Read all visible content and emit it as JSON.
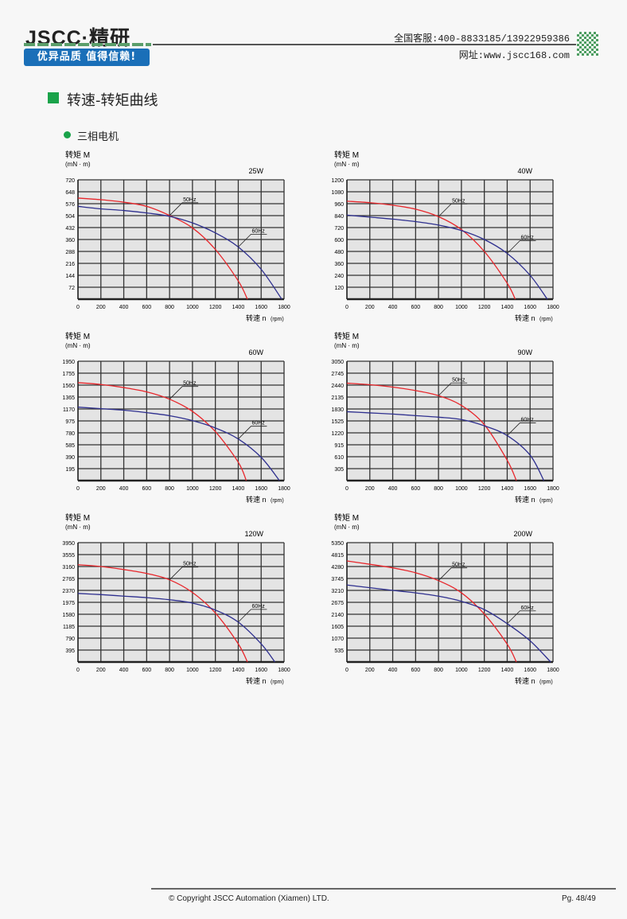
{
  "header": {
    "logo": "JSCC·精研",
    "slogan": "优异品质 值得信赖!",
    "hotline": "全国客服:400-8833185/13922959386",
    "website": "网址:www.jscc168.com"
  },
  "section_title": "转速-转矩曲线",
  "subsection_title": "三相电机",
  "footer": {
    "copyright": "© Copyright JSCC Automation (Xiamen) LTD.",
    "page": "Pg. 48/49"
  },
  "colors": {
    "50Hz": "#e8262b",
    "60Hz": "#2e2f8f",
    "plot_bg": "#e4e4e4",
    "accent": "#1aa34a"
  },
  "chart_data": [
    {
      "type": "line",
      "title": "25W",
      "ylabel": "转矩 M",
      "yunit": "(mN · m)",
      "xlabel": "转速 n",
      "xunit": "(rpm)",
      "xlim": [
        0,
        1800
      ],
      "ylim": [
        0,
        720
      ],
      "grid": true,
      "xticks": [
        "0",
        "200",
        "400",
        "600",
        "800",
        "1000",
        "1200",
        "1400",
        "1600",
        "1800"
      ],
      "yticks": [
        "72",
        "144",
        "216",
        "288",
        "360",
        "432",
        "504",
        "576",
        "648",
        "720"
      ],
      "series": [
        {
          "name": "50Hz",
          "x": [
            0,
            200,
            400,
            600,
            800,
            1000,
            1200,
            1400,
            1480
          ],
          "y": [
            610,
            600,
            585,
            560,
            505,
            430,
            300,
            110,
            0
          ]
        },
        {
          "name": "60Hz",
          "x": [
            0,
            200,
            400,
            600,
            800,
            1000,
            1200,
            1400,
            1600,
            1780
          ],
          "y": [
            560,
            545,
            535,
            520,
            500,
            460,
            400,
            315,
            180,
            0
          ]
        }
      ]
    },
    {
      "type": "line",
      "title": "40W",
      "ylabel": "转矩 M",
      "yunit": "(mN · m)",
      "xlabel": "转速 n",
      "xunit": "(rpm)",
      "xlim": [
        0,
        1800
      ],
      "ylim": [
        0,
        1200
      ],
      "grid": true,
      "xticks": [
        "0",
        "200",
        "400",
        "600",
        "800",
        "1000",
        "1200",
        "1400",
        "1600",
        "1800"
      ],
      "yticks": [
        "120",
        "240",
        "360",
        "480",
        "600",
        "720",
        "840",
        "960",
        "1080",
        "1200"
      ],
      "series": [
        {
          "name": "50Hz",
          "x": [
            0,
            200,
            400,
            600,
            800,
            1000,
            1200,
            1400,
            1470
          ],
          "y": [
            985,
            970,
            945,
            905,
            830,
            700,
            480,
            160,
            0
          ]
        },
        {
          "name": "60Hz",
          "x": [
            0,
            200,
            400,
            600,
            800,
            1000,
            1200,
            1400,
            1600,
            1750
          ],
          "y": [
            845,
            825,
            805,
            780,
            745,
            690,
            600,
            460,
            240,
            0
          ]
        }
      ]
    },
    {
      "type": "line",
      "title": "60W",
      "ylabel": "转矩 M",
      "yunit": "(mN · m)",
      "xlabel": "转速 n",
      "xunit": "(rpm)",
      "xlim": [
        0,
        1800
      ],
      "ylim": [
        0,
        1950
      ],
      "grid": true,
      "xticks": [
        "0",
        "200",
        "400",
        "600",
        "800",
        "1000",
        "1200",
        "1400",
        "1600",
        "1800"
      ],
      "yticks": [
        "195",
        "390",
        "585",
        "780",
        "975",
        "1170",
        "1365",
        "1560",
        "1755",
        "1950"
      ],
      "series": [
        {
          "name": "50Hz",
          "x": [
            0,
            200,
            400,
            600,
            800,
            1000,
            1200,
            1400,
            1470
          ],
          "y": [
            1600,
            1570,
            1520,
            1450,
            1330,
            1130,
            800,
            300,
            0
          ]
        },
        {
          "name": "60Hz",
          "x": [
            0,
            200,
            400,
            600,
            800,
            1000,
            1200,
            1400,
            1600,
            1760
          ],
          "y": [
            1200,
            1175,
            1150,
            1110,
            1060,
            980,
            860,
            680,
            380,
            0
          ]
        }
      ]
    },
    {
      "type": "line",
      "title": "90W",
      "ylabel": "转矩 M",
      "yunit": "(mN · m)",
      "xlabel": "转速 n",
      "xunit": "(rpm)",
      "xlim": [
        0,
        1800
      ],
      "ylim": [
        0,
        3050
      ],
      "grid": true,
      "xticks": [
        "0",
        "200",
        "400",
        "600",
        "800",
        "1000",
        "1200",
        "1400",
        "1600",
        "1800"
      ],
      "yticks": [
        "305",
        "610",
        "915",
        "1220",
        "1525",
        "1830",
        "2135",
        "2440",
        "2745",
        "3050"
      ],
      "series": [
        {
          "name": "50Hz",
          "x": [
            0,
            200,
            400,
            600,
            800,
            1000,
            1200,
            1400,
            1480
          ],
          "y": [
            2490,
            2450,
            2390,
            2300,
            2170,
            1920,
            1430,
            520,
            0
          ]
        },
        {
          "name": "60Hz",
          "x": [
            0,
            200,
            400,
            600,
            800,
            1000,
            1200,
            1400,
            1600,
            1720
          ],
          "y": [
            1760,
            1730,
            1700,
            1660,
            1620,
            1560,
            1400,
            1150,
            650,
            0
          ]
        }
      ]
    },
    {
      "type": "line",
      "title": "120W",
      "ylabel": "转矩 M",
      "yunit": "(mN · m)",
      "xlabel": "转速 n",
      "xunit": "(rpm)",
      "xlim": [
        0,
        1800
      ],
      "ylim": [
        0,
        3950
      ],
      "grid": true,
      "xticks": [
        "0",
        "200",
        "400",
        "600",
        "800",
        "1000",
        "1200",
        "1400",
        "1600",
        "1800"
      ],
      "yticks": [
        "395",
        "790",
        "1185",
        "1580",
        "1975",
        "2370",
        "2765",
        "3160",
        "3555",
        "3950"
      ],
      "series": [
        {
          "name": "50Hz",
          "x": [
            0,
            200,
            400,
            600,
            800,
            1000,
            1200,
            1400,
            1480
          ],
          "y": [
            3220,
            3160,
            3060,
            2930,
            2720,
            2300,
            1620,
            600,
            0
          ]
        },
        {
          "name": "60Hz",
          "x": [
            0,
            200,
            400,
            600,
            800,
            1000,
            1200,
            1400,
            1600,
            1720
          ],
          "y": [
            2270,
            2230,
            2180,
            2130,
            2060,
            1950,
            1720,
            1320,
            600,
            0
          ]
        }
      ]
    },
    {
      "type": "line",
      "title": "200W",
      "ylabel": "转矩 M",
      "yunit": "(mN · m)",
      "xlabel": "转速 n",
      "xunit": "(rpm)",
      "xlim": [
        0,
        1800
      ],
      "ylim": [
        0,
        5350
      ],
      "grid": true,
      "xticks": [
        "0",
        "200",
        "400",
        "600",
        "800",
        "1000",
        "1200",
        "1400",
        "1600",
        "1800"
      ],
      "yticks": [
        "535",
        "1070",
        "1605",
        "2140",
        "2675",
        "3210",
        "3745",
        "4280",
        "4815",
        "5350"
      ],
      "series": [
        {
          "name": "50Hz",
          "x": [
            0,
            200,
            400,
            600,
            800,
            1000,
            1200,
            1400,
            1480
          ],
          "y": [
            4530,
            4380,
            4220,
            4000,
            3650,
            3100,
            2150,
            800,
            0
          ]
        },
        {
          "name": "60Hz",
          "x": [
            0,
            200,
            400,
            600,
            800,
            1000,
            1200,
            1400,
            1600,
            1780
          ],
          "y": [
            3450,
            3330,
            3210,
            3100,
            2950,
            2720,
            2350,
            1720,
            950,
            0
          ]
        }
      ]
    }
  ]
}
